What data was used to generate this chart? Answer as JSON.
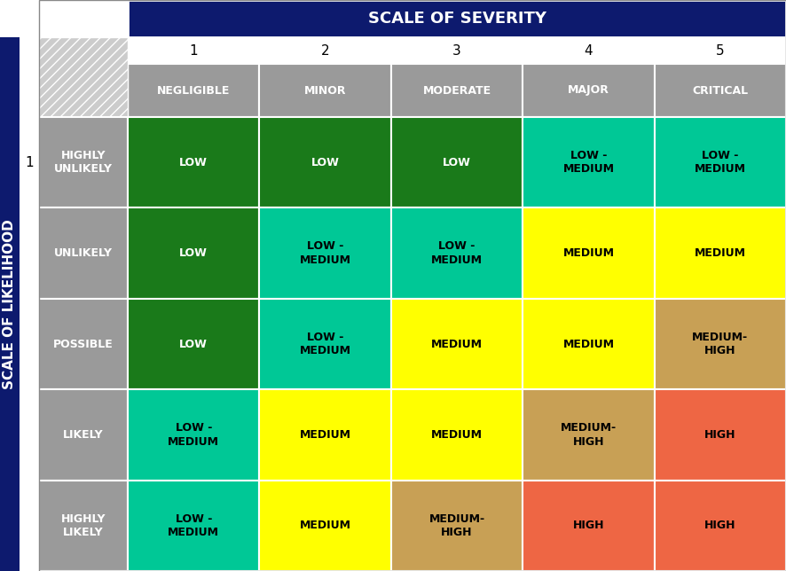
{
  "title_severity": "SCALE OF SEVERITY",
  "title_likelihood": "SCALE OF LIKELIHOOD",
  "severity_numbers": [
    "1",
    "2",
    "3",
    "4",
    "5"
  ],
  "severity_labels": [
    "NEGLIGIBLE",
    "MINOR",
    "MODERATE",
    "MAJOR",
    "CRITICAL"
  ],
  "likelihood_labels": [
    "HIGHLY\nUNLIKELY",
    "UNLIKELY",
    "POSSIBLE",
    "LIKELY",
    "HIGHLY\nLIKELY"
  ],
  "header_bg": "#0d1a6e",
  "header_text_color": "#ffffff",
  "sidebar_bg": "#0d1a6e",
  "gray_bg": "#9a9a9a",
  "gray_text": "#ffffff",
  "hatch_bg": "#cccccc",
  "white_bg": "#ffffff",
  "cell_data": [
    [
      {
        "text": "LOW",
        "bg": "#1a7a1a",
        "text_color": "#ffffff"
      },
      {
        "text": "LOW",
        "bg": "#1a7a1a",
        "text_color": "#ffffff"
      },
      {
        "text": "LOW",
        "bg": "#1a7a1a",
        "text_color": "#ffffff"
      },
      {
        "text": "LOW -\nMEDIUM",
        "bg": "#00c896",
        "text_color": "#000000"
      },
      {
        "text": "LOW -\nMEDIUM",
        "bg": "#00c896",
        "text_color": "#000000"
      }
    ],
    [
      {
        "text": "LOW",
        "bg": "#1a7a1a",
        "text_color": "#ffffff"
      },
      {
        "text": "LOW -\nMEDIUM",
        "bg": "#00c896",
        "text_color": "#000000"
      },
      {
        "text": "LOW -\nMEDIUM",
        "bg": "#00c896",
        "text_color": "#000000"
      },
      {
        "text": "MEDIUM",
        "bg": "#ffff00",
        "text_color": "#000000"
      },
      {
        "text": "MEDIUM",
        "bg": "#ffff00",
        "text_color": "#000000"
      }
    ],
    [
      {
        "text": "LOW",
        "bg": "#1a7a1a",
        "text_color": "#ffffff"
      },
      {
        "text": "LOW -\nMEDIUM",
        "bg": "#00c896",
        "text_color": "#000000"
      },
      {
        "text": "MEDIUM",
        "bg": "#ffff00",
        "text_color": "#000000"
      },
      {
        "text": "MEDIUM",
        "bg": "#ffff00",
        "text_color": "#000000"
      },
      {
        "text": "MEDIUM-\nHIGH",
        "bg": "#c8a055",
        "text_color": "#000000"
      }
    ],
    [
      {
        "text": "LOW -\nMEDIUM",
        "bg": "#00c896",
        "text_color": "#000000"
      },
      {
        "text": "MEDIUM",
        "bg": "#ffff00",
        "text_color": "#000000"
      },
      {
        "text": "MEDIUM",
        "bg": "#ffff00",
        "text_color": "#000000"
      },
      {
        "text": "MEDIUM-\nHIGH",
        "bg": "#c8a055",
        "text_color": "#000000"
      },
      {
        "text": "HIGH",
        "bg": "#ee6644",
        "text_color": "#000000"
      }
    ],
    [
      {
        "text": "LOW -\nMEDIUM",
        "bg": "#00c896",
        "text_color": "#000000"
      },
      {
        "text": "MEDIUM",
        "bg": "#ffff00",
        "text_color": "#000000"
      },
      {
        "text": "MEDIUM-\nHIGH",
        "bg": "#c8a055",
        "text_color": "#000000"
      },
      {
        "text": "HIGH",
        "bg": "#ee6644",
        "text_color": "#000000"
      },
      {
        "text": "HIGH",
        "bg": "#ee6644",
        "text_color": "#000000"
      }
    ]
  ],
  "fig_w": 8.86,
  "fig_h": 6.44,
  "dpi": 100
}
